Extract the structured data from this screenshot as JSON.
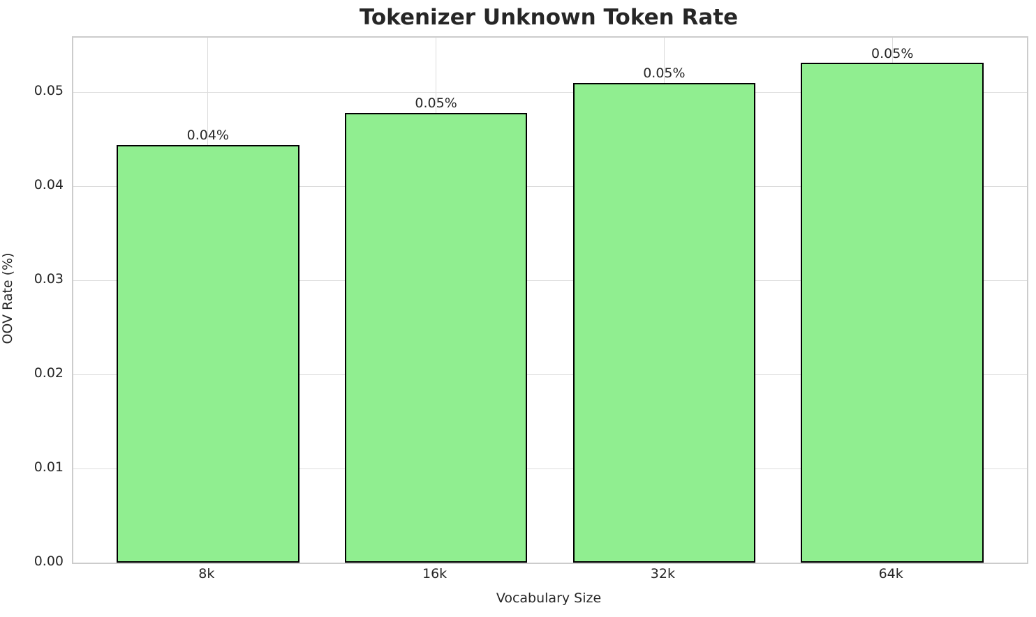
{
  "chart_data": {
    "type": "bar",
    "title": "Tokenizer Unknown Token Rate",
    "xlabel": "Vocabulary Size",
    "ylabel": "OOV Rate (%)",
    "categories": [
      "8k",
      "16k",
      "32k",
      "64k"
    ],
    "values": [
      0.0444,
      0.0478,
      0.051,
      0.0531
    ],
    "bar_labels": [
      "0.04%",
      "0.05%",
      "0.05%",
      "0.05%"
    ],
    "yticks": [
      0.0,
      0.01,
      0.02,
      0.03,
      0.04,
      0.05
    ],
    "ytick_labels": [
      "0.00",
      "0.01",
      "0.02",
      "0.03",
      "0.04",
      "0.05"
    ],
    "ylim": [
      0,
      0.0558
    ],
    "xlim": [
      -0.59,
      3.59
    ],
    "bar_width": 0.8,
    "grid": true,
    "legend": "none",
    "colors": {
      "bar_fill": "#90EE90",
      "bar_edge": "#000000",
      "grid": "#DCDCDC",
      "spine": "#CCCCCC",
      "text": "#262626",
      "background": "#FFFFFF"
    }
  }
}
